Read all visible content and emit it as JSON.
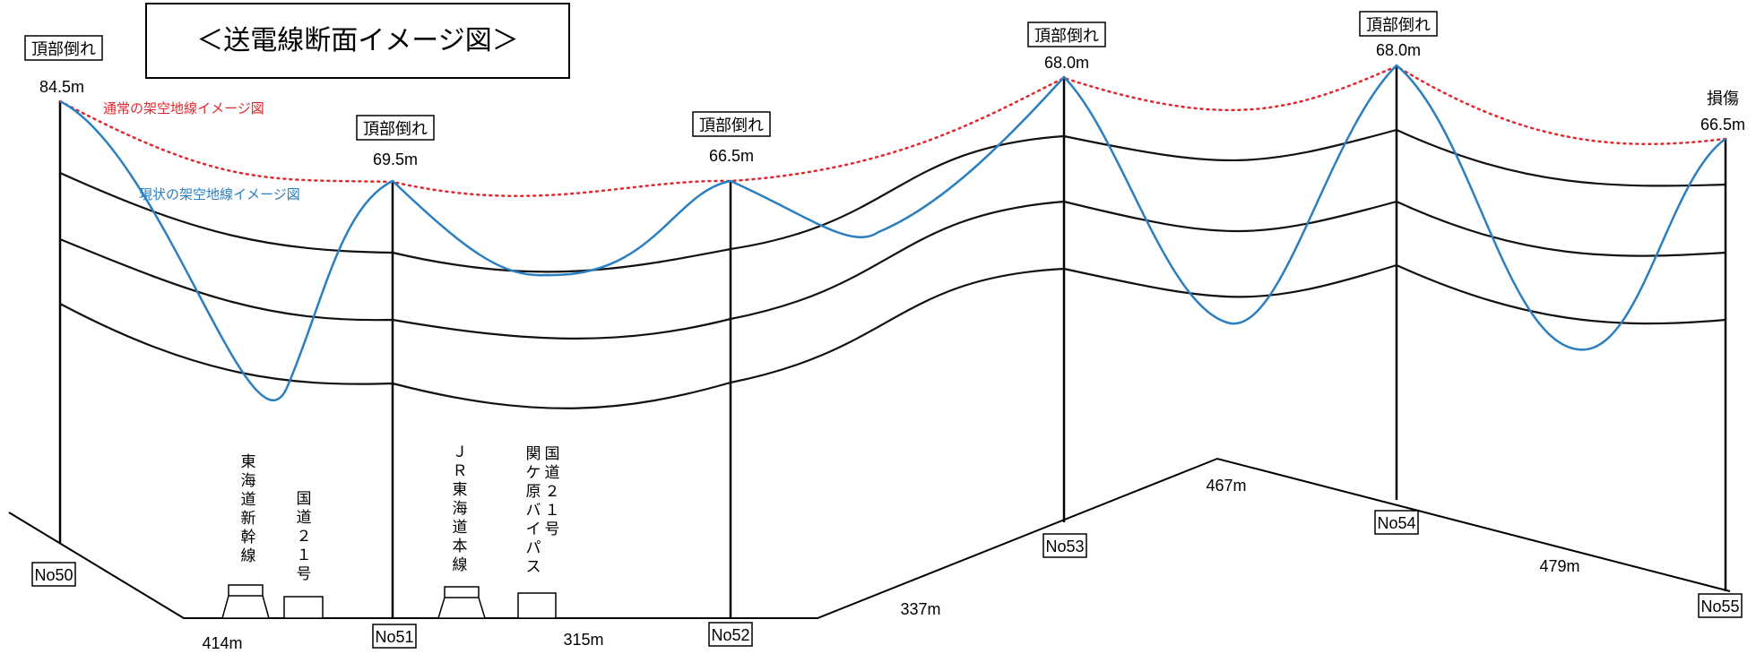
{
  "title": "＜送電線断面イメージ図＞",
  "legend": {
    "normal": "通常の架空地線イメージ図",
    "current": "現状の架空地線イメージ図"
  },
  "colors": {
    "normal_line": "#e0282e",
    "current_line": "#2a7fc0",
    "conductor": "#111111"
  },
  "towers": [
    {
      "id": "No50",
      "status": "頂部倒れ",
      "height": "84.5m"
    },
    {
      "id": "No51",
      "status": "頂部倒れ",
      "height": "69.5m"
    },
    {
      "id": "No52",
      "status": "頂部倒れ",
      "height": "66.5m"
    },
    {
      "id": "No53",
      "status": "頂部倒れ",
      "height": "68.0m"
    },
    {
      "id": "No54",
      "status": "頂部倒れ",
      "height": "68.0m"
    },
    {
      "id": "No55",
      "status": "損傷",
      "height": "66.5m"
    }
  ],
  "spans": [
    "414m",
    "315m",
    "337m",
    "467m",
    "479m"
  ],
  "crossings": [
    {
      "label": "東海道新幹線"
    },
    {
      "label": "国道２１号"
    },
    {
      "label": "ＪＲ東海道本線"
    },
    {
      "label": "国道２１号"
    },
    {
      "label": "関ケ原バイパス"
    }
  ]
}
